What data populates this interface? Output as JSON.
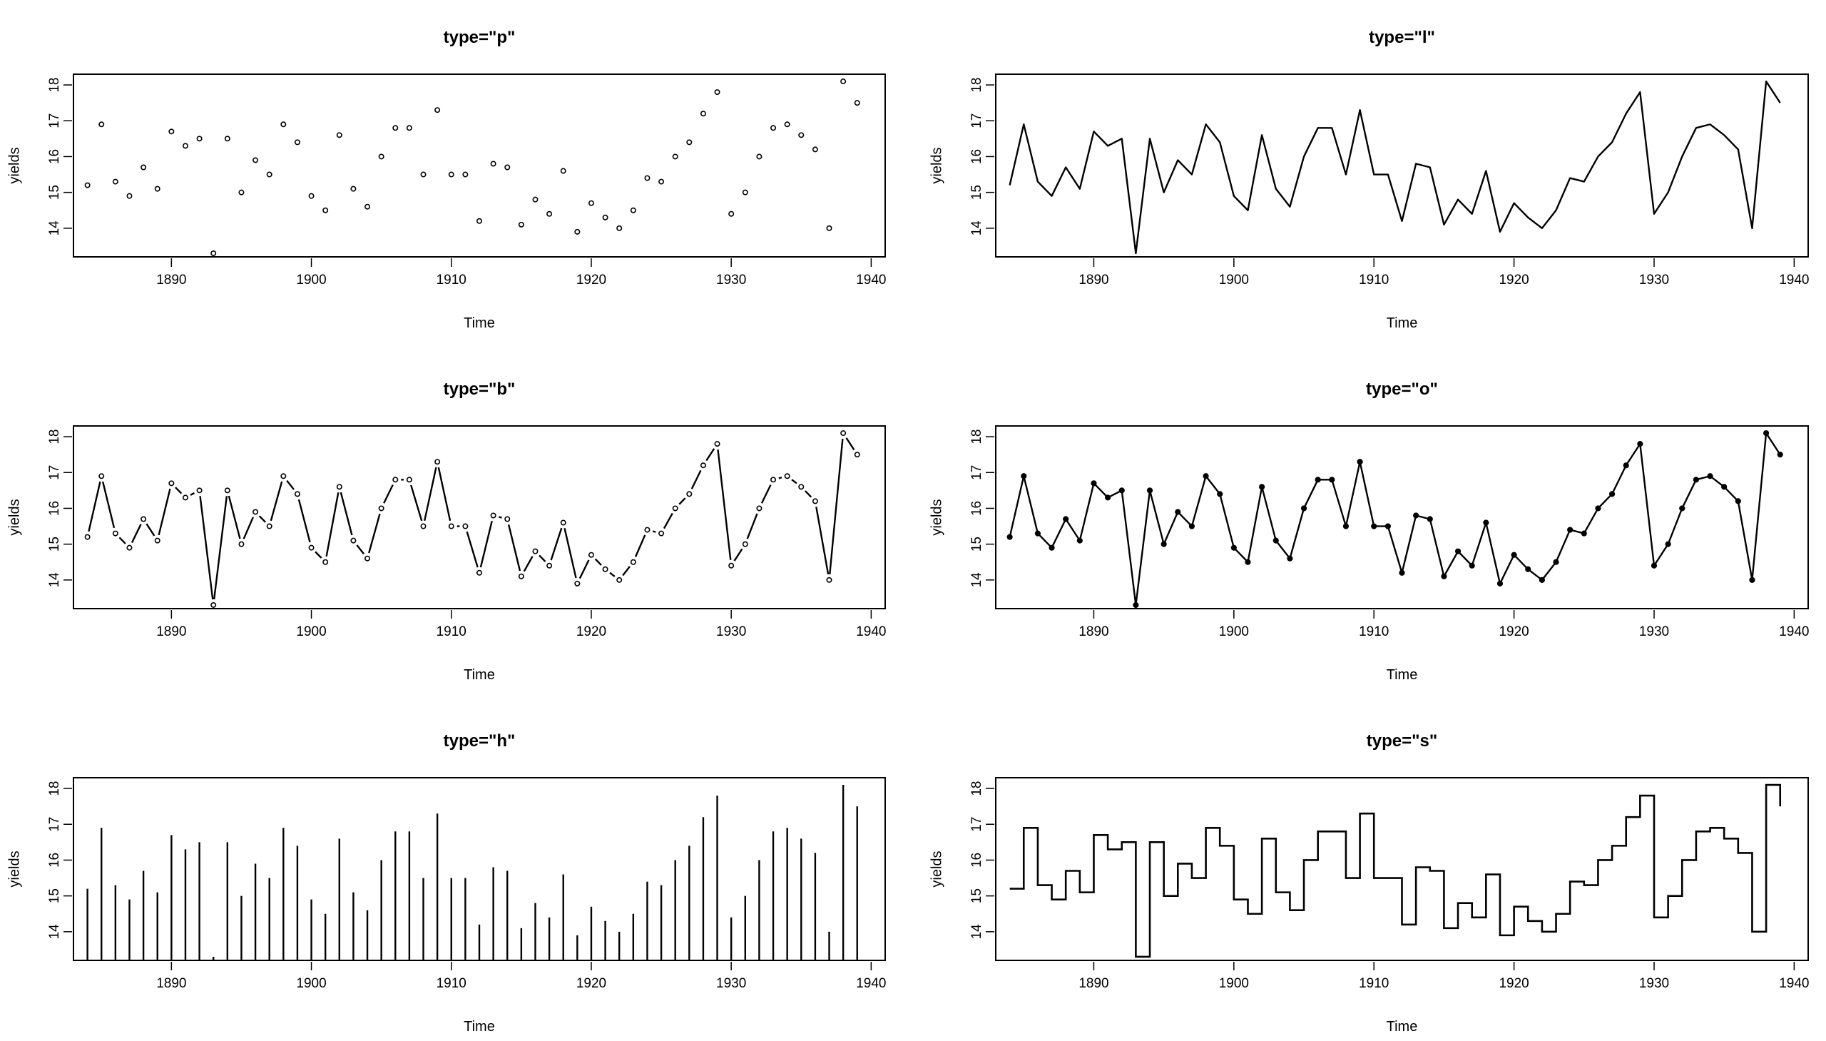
{
  "figure": {
    "x_ticks": [
      1890,
      1900,
      1910,
      1920,
      1930,
      1940
    ],
    "y_ticks": [
      14,
      15,
      16,
      17,
      18
    ],
    "xlim": [
      1883,
      1941
    ],
    "ylim": [
      13.2,
      18.3
    ],
    "colors": {
      "ink": "#000000",
      "background": "#ffffff"
    }
  },
  "chart_data": [
    {
      "type": "scatter",
      "title": "type=\"p\"",
      "xlabel": "Time",
      "ylabel": "yields",
      "plot_type": "p",
      "x_start": 1884,
      "values": [
        15.2,
        16.9,
        15.3,
        14.9,
        15.7,
        15.1,
        16.7,
        16.3,
        16.5,
        13.3,
        16.5,
        15.0,
        15.9,
        15.5,
        16.9,
        16.4,
        14.9,
        14.5,
        16.6,
        15.1,
        14.6,
        16.0,
        16.8,
        16.8,
        15.5,
        17.3,
        15.5,
        15.5,
        14.2,
        15.8,
        15.7,
        14.1,
        14.8,
        14.4,
        15.6,
        13.9,
        14.7,
        14.3,
        14.0,
        14.5,
        15.4,
        15.3,
        16.0,
        16.4,
        17.2,
        17.8,
        14.4,
        15.0,
        16.0,
        16.8,
        16.9,
        16.6,
        16.2,
        14.0,
        18.1,
        17.5
      ]
    },
    {
      "type": "line",
      "title": "type=\"l\"",
      "xlabel": "Time",
      "ylabel": "yields",
      "plot_type": "l",
      "x_start": 1884,
      "values": [
        15.2,
        16.9,
        15.3,
        14.9,
        15.7,
        15.1,
        16.7,
        16.3,
        16.5,
        13.3,
        16.5,
        15.0,
        15.9,
        15.5,
        16.9,
        16.4,
        14.9,
        14.5,
        16.6,
        15.1,
        14.6,
        16.0,
        16.8,
        16.8,
        15.5,
        17.3,
        15.5,
        15.5,
        14.2,
        15.8,
        15.7,
        14.1,
        14.8,
        14.4,
        15.6,
        13.9,
        14.7,
        14.3,
        14.0,
        14.5,
        15.4,
        15.3,
        16.0,
        16.4,
        17.2,
        17.8,
        14.4,
        15.0,
        16.0,
        16.8,
        16.9,
        16.6,
        16.2,
        14.0,
        18.1,
        17.5
      ]
    },
    {
      "type": "line",
      "title": "type=\"b\"",
      "xlabel": "Time",
      "ylabel": "yields",
      "plot_type": "b",
      "x_start": 1884,
      "values": [
        15.2,
        16.9,
        15.3,
        14.9,
        15.7,
        15.1,
        16.7,
        16.3,
        16.5,
        13.3,
        16.5,
        15.0,
        15.9,
        15.5,
        16.9,
        16.4,
        14.9,
        14.5,
        16.6,
        15.1,
        14.6,
        16.0,
        16.8,
        16.8,
        15.5,
        17.3,
        15.5,
        15.5,
        14.2,
        15.8,
        15.7,
        14.1,
        14.8,
        14.4,
        15.6,
        13.9,
        14.7,
        14.3,
        14.0,
        14.5,
        15.4,
        15.3,
        16.0,
        16.4,
        17.2,
        17.8,
        14.4,
        15.0,
        16.0,
        16.8,
        16.9,
        16.6,
        16.2,
        14.0,
        18.1,
        17.5
      ]
    },
    {
      "type": "line",
      "title": "type=\"o\"",
      "xlabel": "Time",
      "ylabel": "yields",
      "plot_type": "o",
      "x_start": 1884,
      "values": [
        15.2,
        16.9,
        15.3,
        14.9,
        15.7,
        15.1,
        16.7,
        16.3,
        16.5,
        13.3,
        16.5,
        15.0,
        15.9,
        15.5,
        16.9,
        16.4,
        14.9,
        14.5,
        16.6,
        15.1,
        14.6,
        16.0,
        16.8,
        16.8,
        15.5,
        17.3,
        15.5,
        15.5,
        14.2,
        15.8,
        15.7,
        14.1,
        14.8,
        14.4,
        15.6,
        13.9,
        14.7,
        14.3,
        14.0,
        14.5,
        15.4,
        15.3,
        16.0,
        16.4,
        17.2,
        17.8,
        14.4,
        15.0,
        16.0,
        16.8,
        16.9,
        16.6,
        16.2,
        14.0,
        18.1,
        17.5
      ]
    },
    {
      "type": "bar",
      "title": "type=\"h\"",
      "xlabel": "Time",
      "ylabel": "yields",
      "plot_type": "h",
      "x_start": 1884,
      "values": [
        15.2,
        16.9,
        15.3,
        14.9,
        15.7,
        15.1,
        16.7,
        16.3,
        16.5,
        13.3,
        16.5,
        15.0,
        15.9,
        15.5,
        16.9,
        16.4,
        14.9,
        14.5,
        16.6,
        15.1,
        14.6,
        16.0,
        16.8,
        16.8,
        15.5,
        17.3,
        15.5,
        15.5,
        14.2,
        15.8,
        15.7,
        14.1,
        14.8,
        14.4,
        15.6,
        13.9,
        14.7,
        14.3,
        14.0,
        14.5,
        15.4,
        15.3,
        16.0,
        16.4,
        17.2,
        17.8,
        14.4,
        15.0,
        16.0,
        16.8,
        16.9,
        16.6,
        16.2,
        14.0,
        18.1,
        17.5
      ]
    },
    {
      "type": "line",
      "title": "type=\"s\"",
      "xlabel": "Time",
      "ylabel": "yields",
      "plot_type": "s",
      "x_start": 1884,
      "values": [
        15.2,
        16.9,
        15.3,
        14.9,
        15.7,
        15.1,
        16.7,
        16.3,
        16.5,
        13.3,
        16.5,
        15.0,
        15.9,
        15.5,
        16.9,
        16.4,
        14.9,
        14.5,
        16.6,
        15.1,
        14.6,
        16.0,
        16.8,
        16.8,
        15.5,
        17.3,
        15.5,
        15.5,
        14.2,
        15.8,
        15.7,
        14.1,
        14.8,
        14.4,
        15.6,
        13.9,
        14.7,
        14.3,
        14.0,
        14.5,
        15.4,
        15.3,
        16.0,
        16.4,
        17.2,
        17.8,
        14.4,
        15.0,
        16.0,
        16.8,
        16.9,
        16.6,
        16.2,
        14.0,
        18.1,
        17.5
      ]
    }
  ]
}
